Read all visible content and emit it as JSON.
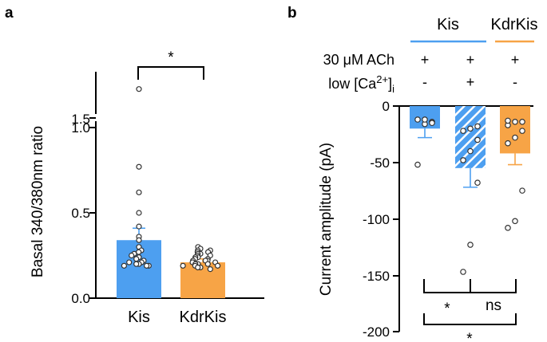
{
  "chart_data": [
    {
      "panel": "a",
      "type": "bar",
      "ylabel": "Basal 340/380nm ratio",
      "ylim": [
        0,
        1.7
      ],
      "axis_break": [
        1.0,
        1.5
      ],
      "ytick_labels": [
        "0.0",
        "0.5",
        "1.0",
        "1.5"
      ],
      "categories": [
        "Kis",
        "KdrKis"
      ],
      "colors": [
        "#4d9ff0",
        "#f7a446"
      ],
      "values": [
        0.34,
        0.21
      ],
      "errors": [
        0.07,
        0.02
      ],
      "points": [
        [
          1.65,
          0.77,
          0.62,
          0.5,
          0.42,
          0.36,
          0.34,
          0.3,
          0.28,
          0.27,
          0.26,
          0.25,
          0.24,
          0.23,
          0.22,
          0.21,
          0.21,
          0.2,
          0.2,
          0.19,
          0.19,
          0.19
        ],
        [
          0.3,
          0.29,
          0.28,
          0.28,
          0.27,
          0.27,
          0.26,
          0.26,
          0.25,
          0.25,
          0.24,
          0.24,
          0.23,
          0.23,
          0.22,
          0.22,
          0.22,
          0.21,
          0.21,
          0.21,
          0.2,
          0.2,
          0.2,
          0.19,
          0.19,
          0.19,
          0.18,
          0.18,
          0.17
        ]
      ],
      "significance": [
        {
          "pair": [
            0,
            1
          ],
          "label": "*"
        }
      ]
    },
    {
      "panel": "b",
      "type": "bar",
      "ylabel": "Current amplitude (pA)",
      "ylim": [
        -200,
        0
      ],
      "ytick_labels": [
        "0",
        "-50",
        "-100",
        "-150",
        "-200"
      ],
      "group_labels": [
        "Kis",
        "KdrKis"
      ],
      "condition_labels": [
        "30 μM ACh",
        "low [Ca",
        "2+",
        "]",
        "i"
      ],
      "condition_values": [
        [
          "+",
          "+",
          "+"
        ],
        [
          "-",
          "+",
          "-"
        ]
      ],
      "colors": [
        "#4d9ff0",
        "#4d9ff0",
        "#f7a446"
      ],
      "hatched": [
        false,
        true,
        false
      ],
      "values": [
        -20,
        -55,
        -42
      ],
      "errors": [
        8,
        17,
        10
      ],
      "points": [
        [
          -52,
          -16,
          -14,
          -12,
          -12,
          -15
        ],
        [
          -147,
          -123,
          -68,
          -48,
          -40,
          -30,
          -22,
          -20,
          -18
        ],
        [
          -108,
          -102,
          -75,
          -33,
          -28,
          -22,
          -17,
          -14,
          -14,
          -13
        ]
      ],
      "significance": [
        {
          "pair": [
            0,
            1
          ],
          "label": "*"
        },
        {
          "pair": [
            1,
            2
          ],
          "label": "ns"
        },
        {
          "pair": [
            0,
            2
          ],
          "label": "*"
        }
      ]
    }
  ]
}
